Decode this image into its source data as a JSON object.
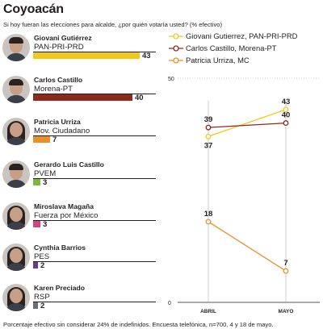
{
  "title": "Coyoacán",
  "question": "Si hoy fueran las elecciones para alcalde, ¿por quién votaría usted? (% efectivo)",
  "footer": "Porcentaje efectivo sin considerar 24% de indefinidos. Encuesta telefónica, n=700, 4 y 18 de mayo.",
  "candidates": [
    {
      "name": "Giovani Gutiérrez",
      "party": "PAN-PRI-PRD",
      "value": 43,
      "color": "#f0c81e",
      "avatar": "male"
    },
    {
      "name": "Carlos Castillo",
      "party": "Morena-PT",
      "value": 40,
      "color": "#8c2a1c",
      "avatar": "male"
    },
    {
      "name": "Patricia Urriza",
      "party": "Mov. Ciudadano",
      "value": 7,
      "color": "#e8912a",
      "avatar": "female"
    },
    {
      "name": "Gerardo Luis Castillo",
      "party": "PVEM",
      "value": 3,
      "color": "#7cb83a",
      "avatar": "male"
    },
    {
      "name": "Miroslava Magaña",
      "party": "Fuerza por México",
      "value": 3,
      "color": "#d2437f",
      "avatar": "female"
    },
    {
      "name": "Cynthia Barrios",
      "party": "PES",
      "value": 2,
      "color": "#6a3c8c",
      "avatar": "female"
    },
    {
      "name": "Karen Preciado",
      "party": "RSP",
      "value": 2,
      "color": "#6d6e71",
      "avatar": "female"
    }
  ],
  "chart_data": {
    "type": "line",
    "x": [
      "ABRIL",
      "MAYO"
    ],
    "ylim": [
      0,
      50
    ],
    "yticks": [
      "0",
      "50"
    ],
    "series": [
      {
        "name": "Giovani Gutierrez, PAN-PRI-PRD",
        "values": [
          37,
          43
        ],
        "color": "#f0c81e"
      },
      {
        "name": "Carlos Castillo, Morena-PT",
        "values": [
          39,
          40
        ],
        "color": "#8c2a1c"
      },
      {
        "name": "Patricia Urriza, MC",
        "values": [
          18,
          7
        ],
        "color": "#e8912a"
      }
    ]
  }
}
